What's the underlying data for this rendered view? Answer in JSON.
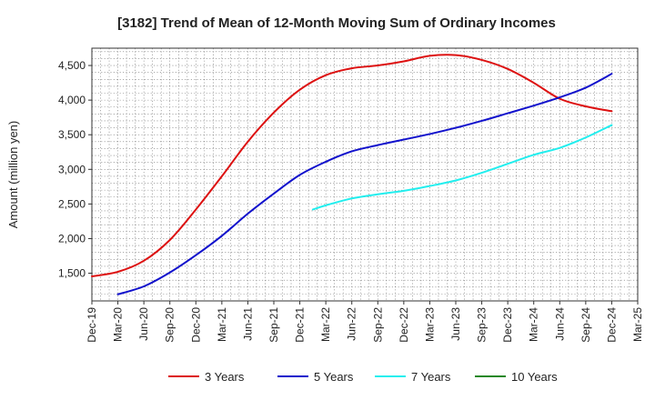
{
  "chart_data": {
    "type": "line",
    "title": "[3182]  Trend of Mean of 12-Month Moving Sum of Ordinary Incomes",
    "xlabel": "",
    "ylabel": "Amount (million yen)",
    "ylim": [
      1100,
      4750
    ],
    "yticks": [
      1500,
      2000,
      2500,
      3000,
      3500,
      4000,
      4500
    ],
    "ytick_labels": [
      "1,500",
      "2,000",
      "2,500",
      "3,000",
      "3,500",
      "4,000",
      "4,500"
    ],
    "x_tick_labels": [
      "Dec-19",
      "Mar-20",
      "Jun-20",
      "Sep-20",
      "Dec-20",
      "Mar-21",
      "Jun-21",
      "Sep-21",
      "Dec-21",
      "Mar-22",
      "Jun-22",
      "Sep-22",
      "Dec-22",
      "Mar-23",
      "Jun-23",
      "Sep-23",
      "Dec-23",
      "Mar-24",
      "Jun-24",
      "Sep-24",
      "Dec-24",
      "Mar-25"
    ],
    "grid": true,
    "legend_position": "bottom",
    "series": [
      {
        "name": "3 Years",
        "color": "#dd1111",
        "points": [
          [
            0,
            1455
          ],
          [
            1,
            1520
          ],
          [
            2,
            1680
          ],
          [
            3,
            1980
          ],
          [
            4,
            2420
          ],
          [
            5,
            2900
          ],
          [
            6,
            3400
          ],
          [
            7,
            3820
          ],
          [
            8,
            4150
          ],
          [
            9,
            4360
          ],
          [
            10,
            4460
          ],
          [
            11,
            4500
          ],
          [
            12,
            4560
          ],
          [
            13,
            4640
          ],
          [
            14,
            4650
          ],
          [
            15,
            4580
          ],
          [
            16,
            4450
          ],
          [
            17,
            4250
          ],
          [
            18,
            4020
          ],
          [
            19,
            3910
          ],
          [
            20,
            3840
          ]
        ]
      },
      {
        "name": "5 Years",
        "color": "#1111cc",
        "points": [
          [
            1,
            1195
          ],
          [
            2,
            1310
          ],
          [
            3,
            1510
          ],
          [
            4,
            1760
          ],
          [
            5,
            2040
          ],
          [
            6,
            2360
          ],
          [
            7,
            2650
          ],
          [
            8,
            2920
          ],
          [
            9,
            3110
          ],
          [
            10,
            3260
          ],
          [
            11,
            3350
          ],
          [
            12,
            3430
          ],
          [
            13,
            3510
          ],
          [
            14,
            3600
          ],
          [
            15,
            3700
          ],
          [
            16,
            3810
          ],
          [
            17,
            3920
          ],
          [
            18,
            4040
          ],
          [
            19,
            4180
          ],
          [
            20,
            4380
          ]
        ]
      },
      {
        "name": "7 Years",
        "color": "#22eeee",
        "points": [
          [
            8.5,
            2420
          ],
          [
            9,
            2480
          ],
          [
            10,
            2580
          ],
          [
            11,
            2640
          ],
          [
            12,
            2690
          ],
          [
            13,
            2760
          ],
          [
            14,
            2840
          ],
          [
            15,
            2950
          ],
          [
            16,
            3080
          ],
          [
            17,
            3210
          ],
          [
            18,
            3310
          ],
          [
            19,
            3460
          ],
          [
            20,
            3640
          ]
        ]
      },
      {
        "name": "10 Years",
        "color": "#228822",
        "points": []
      }
    ]
  }
}
